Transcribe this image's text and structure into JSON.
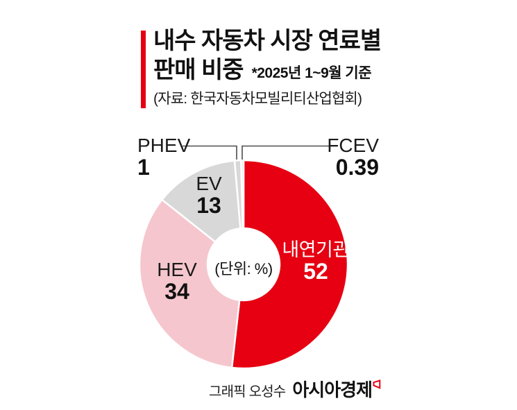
{
  "header": {
    "title_line1": "내수 자동차 시장 연료별",
    "title_line2": "판매 비중",
    "period_note": "*2025년 1~9월 기준",
    "source": "(자료: 한국자동차모빌리티산업협회)"
  },
  "chart_data": {
    "type": "pie",
    "subtype": "donut",
    "title": "내수 자동차 시장 연료별 판매 비중",
    "unit_note": "(단위: %)",
    "start_angle_deg": 0,
    "direction": "clockwise",
    "segments": [
      {
        "label": "내연기관",
        "value": 52,
        "color": "#e60012",
        "text_color": "#ffffff"
      },
      {
        "label": "HEV",
        "value": 34,
        "color": "#f5c6cd",
        "text_color": "#1a1a1a"
      },
      {
        "label": "EV",
        "value": 13,
        "color": "#d8d8d9",
        "text_color": "#1a1a1a"
      },
      {
        "label": "PHEV",
        "value": 1,
        "color": "#d8d8d9",
        "text_color": "#1a1a1a"
      },
      {
        "label": "FCEV",
        "value": 0.39,
        "color": "#eaeaea",
        "text_color": "#1a1a1a"
      }
    ]
  },
  "footer": {
    "credit": "그래픽 오성수",
    "brand": "아시아경제"
  },
  "colors": {
    "accent": "#e60012",
    "leader_line": "#4d4d4d",
    "separator": "#ffffff"
  }
}
